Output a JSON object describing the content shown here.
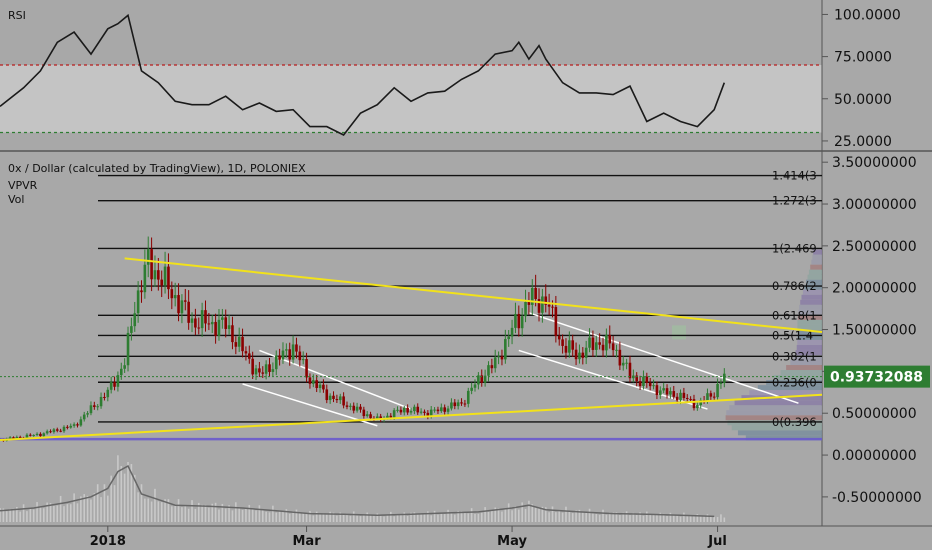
{
  "rsi_pane": {
    "label": "RSI",
    "ticks": [
      "100.0000",
      "75.0000",
      "50.0000",
      "25.0000"
    ],
    "tick_values": [
      100,
      75,
      50,
      25
    ],
    "overbought": 70,
    "oversold": 30,
    "band_color": "#c4c4c4",
    "overbought_color": "#b71c1c",
    "oversold_color": "#2e7d32"
  },
  "price_pane": {
    "title": "0x / Dollar (calculated by TradingView), 1D, POLONIEX",
    "indicators": [
      "VPVR",
      "Vol"
    ],
    "ticks": [
      "3.50000000",
      "3.00000000",
      "2.50000000",
      "2.00000000",
      "1.50000000",
      "1.00000000",
      "0.50000000",
      "0.00000000",
      "-0.50000000"
    ],
    "tick_values": [
      3.5,
      3.0,
      2.5,
      2.0,
      1.5,
      1.0,
      0.5,
      0.0,
      -0.5
    ],
    "last_price": "0.93732088",
    "last_price_value": 0.93732088,
    "last_price_color": "#2e7d32",
    "fib_levels": [
      {
        "label": "1.414(3",
        "value": 3.34
      },
      {
        "label": "1.272(3",
        "value": 3.04
      },
      {
        "label": "1(2.469",
        "value": 2.469
      },
      {
        "label": "0.786(2",
        "value": 2.02
      },
      {
        "label": "0.618(1",
        "value": 1.67
      },
      {
        "label": "0.5(1.4",
        "value": 1.43
      },
      {
        "label": "0.382(1",
        "value": 1.18
      },
      {
        "label": "0.236(0",
        "value": 0.87
      },
      {
        "label": "0(0.396",
        "value": 0.396
      }
    ],
    "support_level": 0.19,
    "trendline_color": "#f2e21a",
    "up_color": "#2e7d32",
    "down_color": "#8b0000"
  },
  "time_axis": {
    "labels": [
      "2018",
      "Mar",
      "May",
      "Jul"
    ],
    "label_days": [
      0,
      59,
      120,
      181
    ]
  },
  "chart_data": {
    "type": "line",
    "x_unit": "days since 2018",
    "x_range": [
      -32,
      212
    ],
    "price_series": {
      "name": "0x / Dollar",
      "x": [
        -32,
        -20,
        -10,
        -5,
        0,
        5,
        8,
        12,
        18,
        25,
        35,
        45,
        55,
        60,
        65,
        70,
        80,
        88,
        95,
        100,
        105,
        110,
        115,
        120,
        125,
        130,
        135,
        140,
        145,
        150,
        155,
        160,
        165,
        170,
        175,
        180,
        183
      ],
      "y": [
        0.18,
        0.25,
        0.35,
        0.55,
        0.75,
        1.1,
        1.8,
        2.3,
        2.0,
        1.6,
        1.55,
        0.95,
        1.3,
        0.9,
        0.72,
        0.62,
        0.42,
        0.55,
        0.5,
        0.56,
        0.62,
        0.9,
        1.1,
        1.5,
        1.85,
        1.85,
        1.3,
        1.2,
        1.35,
        1.3,
        0.95,
        0.85,
        0.75,
        0.7,
        0.6,
        0.75,
        0.94
      ]
    },
    "rsi_series": {
      "name": "RSI",
      "x": [
        -32,
        -25,
        -20,
        -15,
        -10,
        -5,
        0,
        3,
        6,
        10,
        15,
        20,
        25,
        30,
        35,
        40,
        45,
        50,
        55,
        60,
        65,
        70,
        75,
        80,
        85,
        90,
        95,
        100,
        105,
        110,
        115,
        120,
        122,
        125,
        128,
        130,
        135,
        140,
        145,
        150,
        155,
        160,
        165,
        170,
        175,
        180,
        183
      ],
      "y": [
        44,
        58,
        65,
        85,
        88,
        78,
        90,
        96,
        98,
        68,
        58,
        50,
        45,
        48,
        50,
        45,
        46,
        44,
        42,
        35,
        32,
        30,
        40,
        48,
        55,
        50,
        52,
        56,
        60,
        68,
        75,
        80,
        82,
        75,
        80,
        75,
        58,
        55,
        52,
        54,
        56,
        38,
        40,
        38,
        32,
        45,
        58
      ]
    },
    "volume_series": {
      "name": "Vol",
      "x": [
        -32,
        -22,
        -12,
        -5,
        0,
        3,
        6,
        10,
        15,
        20,
        30,
        40,
        50,
        60,
        70,
        80,
        90,
        100,
        110,
        120,
        125,
        130,
        140,
        150,
        160,
        170,
        180
      ],
      "y": [
        0.2,
        0.25,
        0.35,
        0.45,
        0.6,
        0.9,
        1.0,
        0.5,
        0.4,
        0.3,
        0.28,
        0.25,
        0.2,
        0.15,
        0.14,
        0.12,
        0.14,
        0.16,
        0.18,
        0.25,
        0.3,
        0.22,
        0.18,
        0.15,
        0.14,
        0.12,
        0.1
      ]
    },
    "ylim_price": [
      -0.8,
      3.55
    ],
    "ylim_rsi": [
      22,
      105
    ]
  }
}
